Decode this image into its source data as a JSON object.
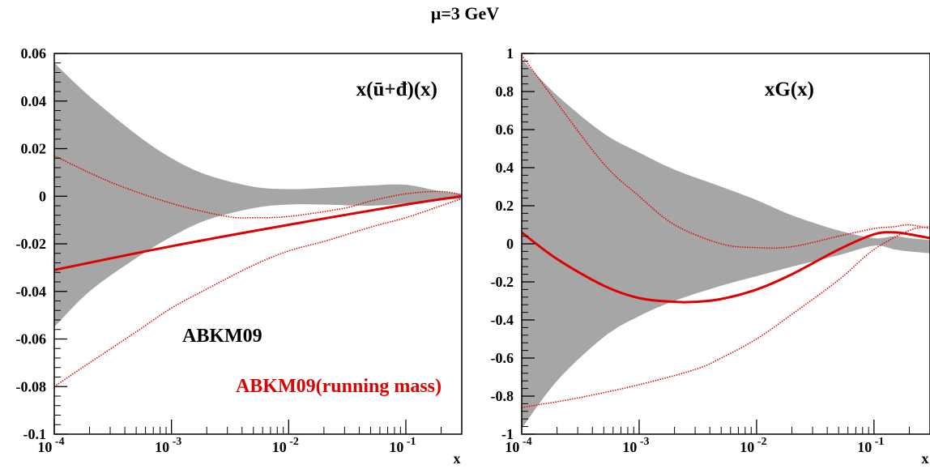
{
  "title": "μ=3 GeV",
  "colors": {
    "band": "#a6a6a6",
    "central": "#e00000",
    "frame": "#000000"
  },
  "chart_data": [
    {
      "type": "line",
      "panel_label": "x(ū+đ)(x)",
      "xlabel": "x",
      "xscale": "log",
      "xlim": [
        0.0001,
        0.3
      ],
      "ylim": [
        -0.1,
        0.06
      ],
      "yticks": [
        -0.1,
        -0.08,
        -0.06,
        -0.04,
        -0.02,
        0,
        0.02,
        0.04,
        0.06
      ],
      "ytick_labels": [
        "-0.1",
        "-0.08",
        "-0.06",
        "-0.04",
        "-0.02",
        "0",
        "0.02",
        "0.04",
        "0.06"
      ],
      "xtick_labels": [
        {
          "base": "10",
          "exp": "-4",
          "x": 0.0001
        },
        {
          "base": "10",
          "exp": "-3",
          "x": 0.001
        },
        {
          "base": "10",
          "exp": "-2",
          "x": 0.01
        },
        {
          "base": "10",
          "exp": "-1",
          "x": 0.1
        }
      ],
      "legend": [
        {
          "name": "ABKM09",
          "color": "#000000"
        },
        {
          "name": "ABKM09(running mass)",
          "color": "#e00000"
        }
      ],
      "band": {
        "x": [
          0.0001,
          0.0002,
          0.0005,
          0.001,
          0.002,
          0.005,
          0.01,
          0.02,
          0.05,
          0.1,
          0.2,
          0.3
        ],
        "upper": [
          0.056,
          0.042,
          0.026,
          0.016,
          0.009,
          0.004,
          0.003,
          0.0035,
          0.0045,
          0.0048,
          0.002,
          0.001
        ],
        "lower": [
          -0.055,
          -0.04,
          -0.026,
          -0.017,
          -0.01,
          -0.005,
          -0.0035,
          -0.0035,
          -0.004,
          -0.003,
          -0.0015,
          -0.001
        ]
      },
      "series": [
        {
          "name": "ABKM09(running mass)",
          "style": "solid",
          "x": [
            0.0001,
            0.001,
            0.01,
            0.1,
            0.3
          ],
          "y": [
            -0.031,
            -0.021,
            -0.012,
            -0.0035,
            0.0
          ]
        },
        {
          "style": "dotted",
          "x": [
            0.0001,
            0.0003,
            0.001,
            0.003,
            0.005,
            0.01,
            0.03,
            0.05,
            0.1,
            0.2,
            0.3
          ],
          "y": [
            0.017,
            0.006,
            -0.003,
            -0.0085,
            -0.009,
            -0.0085,
            -0.005,
            -0.002,
            0.001,
            0.002,
            0.0005
          ]
        },
        {
          "style": "dotted",
          "x": [
            0.0001,
            0.0002,
            0.0005,
            0.001,
            0.002,
            0.005,
            0.01,
            0.02,
            0.05,
            0.1,
            0.2,
            0.3
          ],
          "y": [
            -0.08,
            -0.07,
            -0.057,
            -0.047,
            -0.039,
            -0.029,
            -0.023,
            -0.019,
            -0.013,
            -0.009,
            -0.004,
            -0.001
          ]
        }
      ]
    },
    {
      "type": "line",
      "panel_label": "xG(x)",
      "xlabel": "x",
      "xscale": "log",
      "xlim": [
        0.0001,
        0.3
      ],
      "ylim": [
        -1,
        1
      ],
      "yticks": [
        -1,
        -0.8,
        -0.6,
        -0.4,
        -0.2,
        0,
        0.2,
        0.4,
        0.6,
        0.8,
        1
      ],
      "ytick_labels": [
        "-1",
        "-0.8",
        "-0.6",
        "-0.4",
        "-0.2",
        "0",
        "0.2",
        "0.4",
        "0.6",
        "0.8",
        "1"
      ],
      "xtick_labels": [
        {
          "base": "10",
          "exp": "-4",
          "x": 0.0001
        },
        {
          "base": "10",
          "exp": "-3",
          "x": 0.001
        },
        {
          "base": "10",
          "exp": "-2",
          "x": 0.01
        },
        {
          "base": "10",
          "exp": "-1",
          "x": 0.1
        }
      ],
      "band": {
        "x": [
          0.0001,
          0.0002,
          0.0005,
          0.001,
          0.002,
          0.005,
          0.01,
          0.02,
          0.05,
          0.1,
          0.15,
          0.2,
          0.3
        ],
        "upper": [
          0.97,
          0.78,
          0.58,
          0.48,
          0.39,
          0.3,
          0.23,
          0.15,
          0.07,
          0.03,
          0.04,
          0.03,
          0.02
        ],
        "lower": [
          -0.97,
          -0.72,
          -0.49,
          -0.38,
          -0.3,
          -0.22,
          -0.17,
          -0.12,
          -0.06,
          -0.01,
          -0.03,
          -0.04,
          -0.05
        ]
      },
      "series": [
        {
          "name": "ABKM09(running mass)",
          "style": "solid",
          "x": [
            0.0001,
            0.0002,
            0.0005,
            0.001,
            0.002,
            0.003,
            0.005,
            0.01,
            0.02,
            0.05,
            0.1,
            0.15,
            0.2,
            0.3
          ],
          "y": [
            0.06,
            -0.08,
            -0.22,
            -0.285,
            -0.305,
            -0.305,
            -0.29,
            -0.24,
            -0.16,
            -0.03,
            0.05,
            0.06,
            0.05,
            0.03
          ]
        },
        {
          "style": "dotted",
          "x": [
            0.0001,
            0.0002,
            0.0005,
            0.001,
            0.002,
            0.005,
            0.01,
            0.02,
            0.05,
            0.1,
            0.15,
            0.2,
            0.3
          ],
          "y": [
            0.99,
            0.74,
            0.42,
            0.25,
            0.1,
            0.0,
            -0.02,
            -0.015,
            0.04,
            0.08,
            0.09,
            0.1,
            0.08
          ]
        },
        {
          "style": "dotted",
          "x": [
            0.0001,
            0.0003,
            0.001,
            0.003,
            0.005,
            0.01,
            0.02,
            0.05,
            0.1,
            0.2,
            0.3
          ],
          "y": [
            -0.86,
            -0.81,
            -0.74,
            -0.66,
            -0.6,
            -0.5,
            -0.37,
            -0.19,
            -0.03,
            0.07,
            0.09
          ]
        }
      ]
    }
  ]
}
